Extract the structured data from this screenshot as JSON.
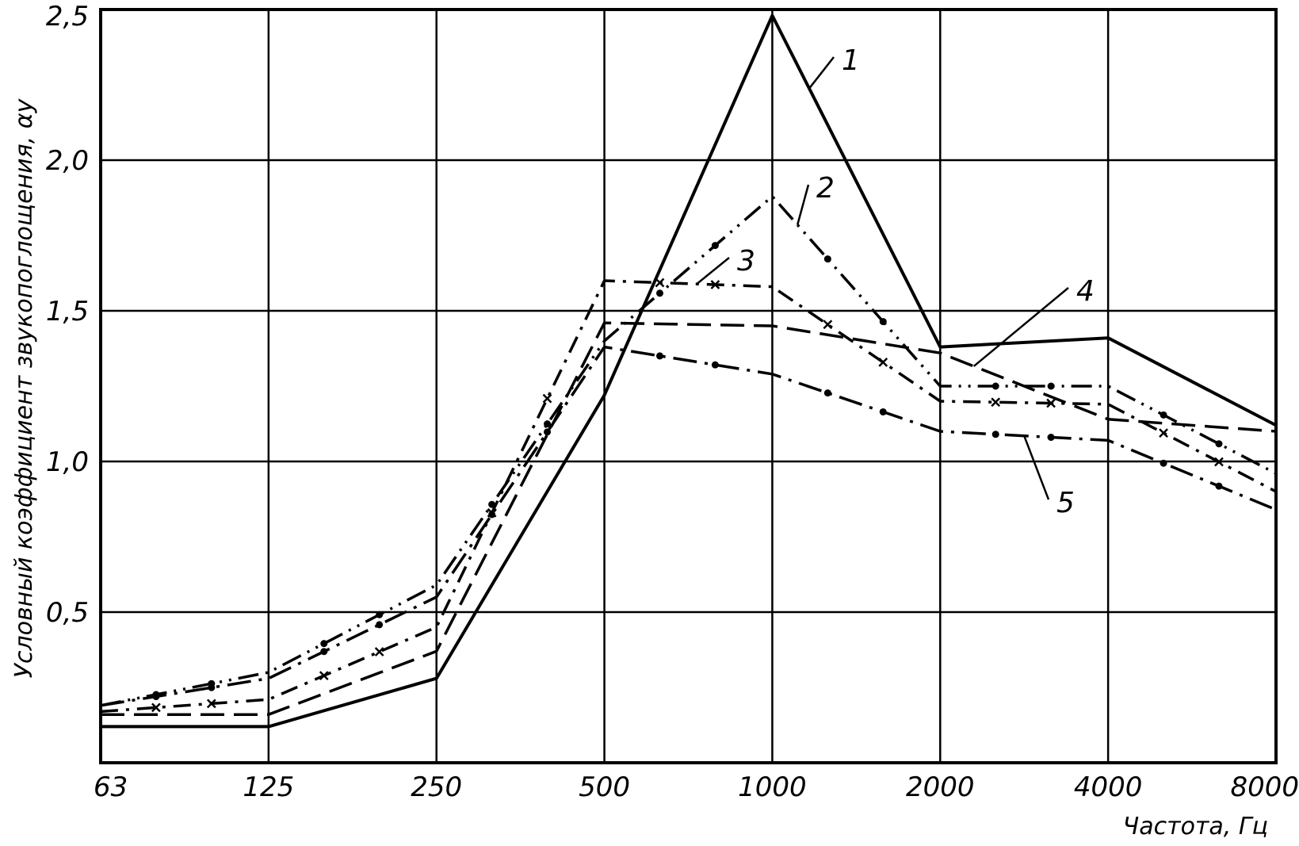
{
  "chart_data": {
    "type": "line",
    "x_scale": "log2",
    "categories": [
      "63",
      "125",
      "250",
      "500",
      "1000",
      "2000",
      "4000",
      "8000"
    ],
    "x": [
      63,
      125,
      250,
      500,
      1000,
      2000,
      4000,
      8000
    ],
    "xlabel": "Частота, Гц",
    "ylabel": "Условный коэффициент звукопоглощения, αу",
    "ylim": [
      0,
      2.5
    ],
    "yticks": [
      0.5,
      1.0,
      1.5,
      2.0,
      2.5
    ],
    "ytick_labels": [
      "0,5",
      "1,0",
      "1,5",
      "2,0",
      "2,5"
    ],
    "grid": true,
    "series": [
      {
        "name": "1",
        "style": "solid",
        "values": [
          0.12,
          0.12,
          0.28,
          1.22,
          2.48,
          1.38,
          1.41,
          1.12
        ]
      },
      {
        "name": "2",
        "style": "dash-dot-dot",
        "values": [
          0.19,
          0.3,
          0.59,
          1.4,
          1.88,
          1.25,
          1.25,
          0.96
        ]
      },
      {
        "name": "3",
        "style": "dash-cross",
        "values": [
          0.17,
          0.21,
          0.45,
          1.6,
          1.58,
          1.2,
          1.19,
          0.9
        ]
      },
      {
        "name": "4",
        "style": "dashed",
        "values": [
          0.16,
          0.16,
          0.37,
          1.46,
          1.45,
          1.36,
          1.14,
          1.1
        ]
      },
      {
        "name": "5",
        "style": "dash-dot",
        "values": [
          0.19,
          0.28,
          0.55,
          1.38,
          1.29,
          1.1,
          1.07,
          0.84
        ]
      }
    ]
  }
}
